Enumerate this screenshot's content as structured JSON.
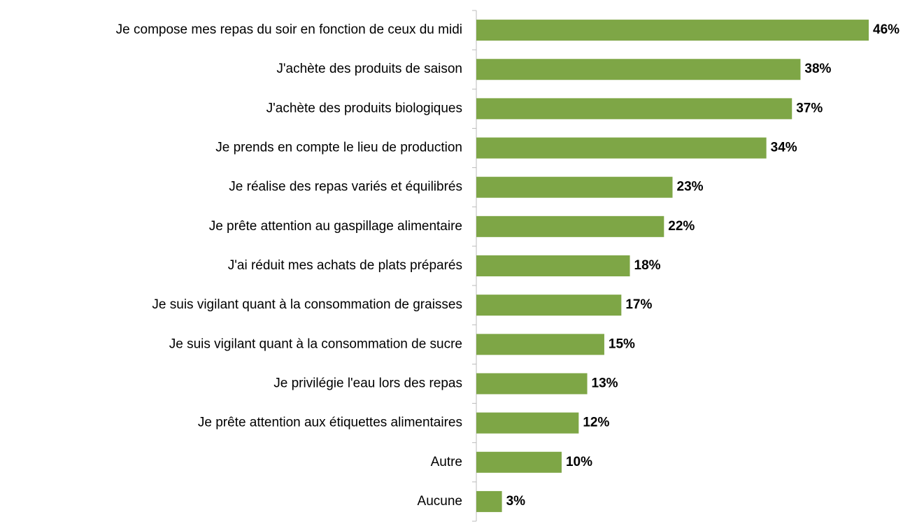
{
  "chart_data": {
    "type": "barh",
    "categories": [
      "Je compose mes repas du soir en fonction de ceux du midi",
      "J'achète des produits de saison",
      "J'achète des produits biologiques",
      "Je prends en compte le lieu de production",
      "Je réalise des repas variés et équilibrés",
      "Je prête attention au gaspillage alimentaire",
      "J'ai réduit mes achats de plats préparés",
      "Je suis vigilant quant à la consommation de graisses",
      "Je suis vigilant quant à la consommation de sucre",
      "Je privilégie l'eau lors des repas",
      "Je prête attention aux étiquettes alimentaires",
      "Autre",
      "Aucune"
    ],
    "values": [
      46,
      38,
      37,
      34,
      23,
      22,
      18,
      17,
      15,
      13,
      12,
      10,
      3
    ],
    "value_labels": [
      "46%",
      "38%",
      "37%",
      "34%",
      "23%",
      "22%",
      "18%",
      "17%",
      "15%",
      "13%",
      "12%",
      "10%",
      "3%"
    ],
    "color": "#7ea646"
  }
}
